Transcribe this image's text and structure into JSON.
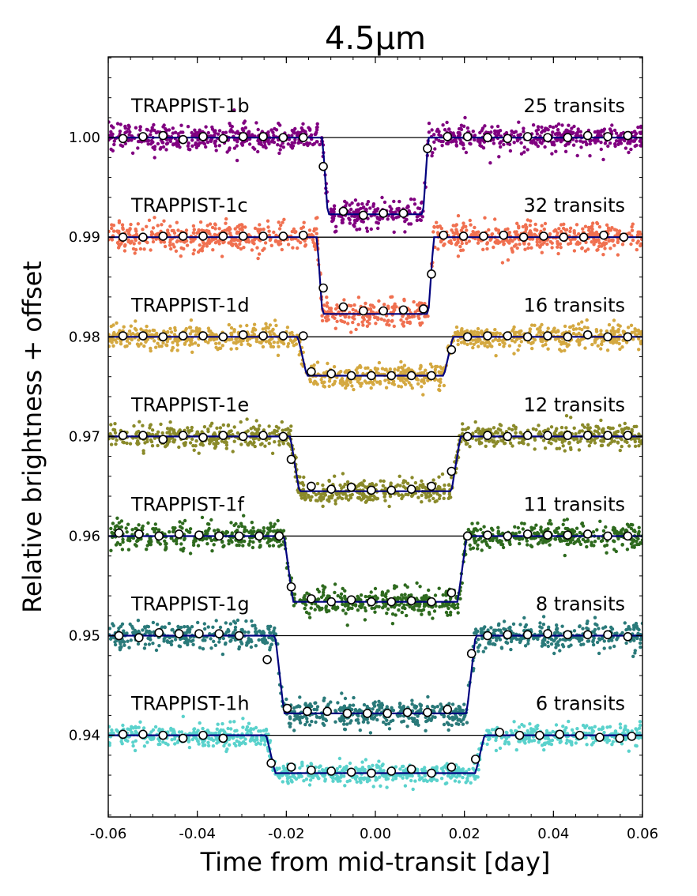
{
  "chart_data": {
    "type": "scatter",
    "title": "4.5μm",
    "xlabel": "Time from mid-transit [day]",
    "ylabel": "Relative brightness + offset",
    "xlim": [
      -0.06,
      0.06
    ],
    "ylim": [
      0.9318,
      1.0081
    ],
    "xticks": [
      -0.06,
      -0.04,
      -0.02,
      0.0,
      0.02,
      0.04,
      0.06
    ],
    "xtick_labels": [
      "-0.06",
      "-0.04",
      "-0.02",
      "0.00",
      "0.02",
      "0.04",
      "0.06"
    ],
    "yticks": [
      1.0,
      0.99,
      0.98,
      0.97,
      0.96,
      0.95,
      0.94
    ],
    "ytick_labels": [
      "1.00",
      "0.99",
      "0.98",
      "0.97",
      "0.96",
      "0.95",
      "0.94"
    ],
    "model_color": "#00007f",
    "baseline_color": "#000000",
    "bin_marker": {
      "fill": "#ffffff",
      "stroke": "#000000"
    },
    "series": [
      {
        "name": "TRAPPIST-1b",
        "transits": "25 transits",
        "color": "#800080",
        "baseline": 1.0,
        "depth": 0.0077,
        "t_half": 0.0119,
        "ingress": 0.0012,
        "scatter": 0.0012,
        "binned": [
          [
            -0.0567,
            0.9999
          ],
          [
            -0.0522,
            1.0001
          ],
          [
            -0.0477,
            1.0002
          ],
          [
            -0.0432,
            0.9998
          ],
          [
            -0.0387,
            1.0001
          ],
          [
            -0.0342,
            0.9999
          ],
          [
            -0.0297,
            1.0001
          ],
          [
            -0.0252,
            1.0001
          ],
          [
            -0.0207,
            1.0
          ],
          [
            -0.0162,
            1.0
          ],
          [
            -0.0117,
            0.9971
          ],
          [
            -0.0072,
            0.9926
          ],
          [
            -0.0027,
            0.9922
          ],
          [
            0.0018,
            0.9924
          ],
          [
            0.0063,
            0.9924
          ],
          [
            0.0117,
            0.9989
          ],
          [
            0.0162,
            1.0001
          ],
          [
            0.0207,
            1.0001
          ],
          [
            0.0252,
            1.0
          ],
          [
            0.0297,
            0.9999
          ],
          [
            0.0342,
            1.0001
          ],
          [
            0.0387,
            1.0
          ],
          [
            0.0432,
            1.0
          ],
          [
            0.0477,
            1.0002
          ],
          [
            0.0522,
            1.0001
          ],
          [
            0.0567,
            1.0002
          ]
        ]
      },
      {
        "name": "TRAPPIST-1c",
        "transits": "32 transits",
        "color": "#f07050",
        "baseline": 0.99,
        "depth": 0.0077,
        "t_half": 0.0131,
        "ingress": 0.0012,
        "scatter": 0.0013,
        "binned": [
          [
            -0.0567,
            0.99
          ],
          [
            -0.0522,
            0.99
          ],
          [
            -0.0477,
            0.9901
          ],
          [
            -0.0432,
            0.9901
          ],
          [
            -0.0387,
            0.9901
          ],
          [
            -0.0342,
            0.9901
          ],
          [
            -0.0297,
            0.9901
          ],
          [
            -0.0252,
            0.9901
          ],
          [
            -0.0207,
            0.9901
          ],
          [
            -0.0162,
            0.9902
          ],
          [
            -0.0117,
            0.9849
          ],
          [
            -0.0072,
            0.983
          ],
          [
            -0.0027,
            0.9826
          ],
          [
            0.0018,
            0.9826
          ],
          [
            0.0063,
            0.9827
          ],
          [
            0.0108,
            0.9828
          ],
          [
            0.0126,
            0.9863
          ],
          [
            0.0153,
            0.9902
          ],
          [
            0.0198,
            0.9901
          ],
          [
            0.0243,
            0.9901
          ],
          [
            0.0288,
            0.9902
          ],
          [
            0.0333,
            0.99
          ],
          [
            0.0378,
            0.9901
          ],
          [
            0.0423,
            0.99
          ],
          [
            0.0468,
            0.99
          ],
          [
            0.0513,
            0.9902
          ],
          [
            0.0558,
            0.99
          ]
        ]
      },
      {
        "name": "TRAPPIST-1d",
        "transits": "16 transits",
        "color": "#d4a840",
        "baseline": 0.98,
        "depth": 0.0039,
        "t_half": 0.0174,
        "ingress": 0.002,
        "scatter": 0.0011,
        "binned": [
          [
            -0.0567,
            0.9801
          ],
          [
            -0.0522,
            0.9801
          ],
          [
            -0.0477,
            0.98
          ],
          [
            -0.0432,
            0.9801
          ],
          [
            -0.0387,
            0.9801
          ],
          [
            -0.0342,
            0.98
          ],
          [
            -0.0297,
            0.9802
          ],
          [
            -0.0252,
            0.9801
          ],
          [
            -0.0207,
            0.9801
          ],
          [
            -0.0162,
            0.9801
          ],
          [
            -0.0144,
            0.9765
          ],
          [
            -0.0099,
            0.9763
          ],
          [
            -0.0054,
            0.9761
          ],
          [
            -0.0009,
            0.9761
          ],
          [
            0.0036,
            0.9761
          ],
          [
            0.0081,
            0.9761
          ],
          [
            0.0126,
            0.9761
          ],
          [
            0.0171,
            0.9787
          ],
          [
            0.0207,
            0.98
          ],
          [
            0.0252,
            0.9801
          ],
          [
            0.0297,
            0.9801
          ],
          [
            0.0342,
            0.98
          ],
          [
            0.0387,
            0.9801
          ],
          [
            0.0432,
            0.98
          ],
          [
            0.0477,
            0.9802
          ],
          [
            0.0522,
            0.98
          ],
          [
            0.0567,
            0.98
          ]
        ]
      },
      {
        "name": "TRAPPIST-1e",
        "transits": "12 transits",
        "color": "#8a8a2a",
        "baseline": 0.97,
        "depth": 0.0055,
        "t_half": 0.0191,
        "ingress": 0.002,
        "scatter": 0.0011,
        "binned": [
          [
            -0.0567,
            0.9701
          ],
          [
            -0.0522,
            0.9701
          ],
          [
            -0.0477,
            0.9697
          ],
          [
            -0.0432,
            0.9701
          ],
          [
            -0.0387,
            0.9699
          ],
          [
            -0.0342,
            0.9701
          ],
          [
            -0.0297,
            0.97
          ],
          [
            -0.0252,
            0.9701
          ],
          [
            -0.0207,
            0.97
          ],
          [
            -0.0189,
            0.9677
          ],
          [
            -0.0144,
            0.965
          ],
          [
            -0.0099,
            0.9647
          ],
          [
            -0.0054,
            0.9649
          ],
          [
            -0.0009,
            0.9646
          ],
          [
            0.0036,
            0.9646
          ],
          [
            0.0081,
            0.9647
          ],
          [
            0.0126,
            0.965
          ],
          [
            0.0171,
            0.9665
          ],
          [
            0.0207,
            0.97
          ],
          [
            0.0252,
            0.9701
          ],
          [
            0.0297,
            0.97
          ],
          [
            0.0342,
            0.9701
          ],
          [
            0.0387,
            0.9701
          ],
          [
            0.0432,
            0.9701
          ],
          [
            0.0477,
            0.9701
          ],
          [
            0.0522,
            0.9701
          ],
          [
            0.0567,
            0.9701
          ]
        ]
      },
      {
        "name": "TRAPPIST-1f",
        "transits": "11 transits",
        "color": "#2e6a1e",
        "baseline": 0.96,
        "depth": 0.0066,
        "t_half": 0.0205,
        "ingress": 0.002,
        "scatter": 0.0012,
        "binned": [
          [
            -0.0576,
            0.9603
          ],
          [
            -0.0531,
            0.9602
          ],
          [
            -0.0486,
            0.96
          ],
          [
            -0.0441,
            0.9602
          ],
          [
            -0.0396,
            0.9601
          ],
          [
            -0.0351,
            0.96
          ],
          [
            -0.0306,
            0.96
          ],
          [
            -0.0261,
            0.96
          ],
          [
            -0.0216,
            0.96
          ],
          [
            -0.0189,
            0.9549
          ],
          [
            -0.0144,
            0.9537
          ],
          [
            -0.0099,
            0.9534
          ],
          [
            -0.0054,
            0.9536
          ],
          [
            -0.0009,
            0.9534
          ],
          [
            0.0036,
            0.9534
          ],
          [
            0.0081,
            0.9535
          ],
          [
            0.0126,
            0.9534
          ],
          [
            0.0171,
            0.9543
          ],
          [
            0.0207,
            0.96
          ],
          [
            0.0252,
            0.9601
          ],
          [
            0.0297,
            0.96
          ],
          [
            0.0342,
            0.9602
          ],
          [
            0.0387,
            0.9601
          ],
          [
            0.0432,
            0.9601
          ],
          [
            0.0477,
            0.9602
          ],
          [
            0.0522,
            0.96
          ],
          [
            0.0567,
            0.96
          ]
        ]
      },
      {
        "name": "TRAPPIST-1g",
        "transits": "8 transits",
        "color": "#2a7a7a",
        "baseline": 0.95,
        "depth": 0.0078,
        "t_half": 0.0225,
        "ingress": 0.002,
        "scatter": 0.0012,
        "binned": [
          [
            -0.0576,
            0.95
          ],
          [
            -0.0531,
            0.9498
          ],
          [
            -0.0486,
            0.9503
          ],
          [
            -0.0441,
            0.9502
          ],
          [
            -0.0396,
            0.9502
          ],
          [
            -0.0351,
            0.9502
          ],
          [
            -0.0306,
            0.95
          ],
          [
            -0.0243,
            0.9476
          ],
          [
            -0.0198,
            0.9427
          ],
          [
            -0.0153,
            0.9424
          ],
          [
            -0.0108,
            0.9424
          ],
          [
            -0.0063,
            0.9422
          ],
          [
            -0.0018,
            0.9422
          ],
          [
            0.0027,
            0.9422
          ],
          [
            0.0072,
            0.9423
          ],
          [
            0.0117,
            0.9423
          ],
          [
            0.0162,
            0.9426
          ],
          [
            0.0216,
            0.9482
          ],
          [
            0.0252,
            0.95
          ],
          [
            0.0297,
            0.9501
          ],
          [
            0.0342,
            0.9501
          ],
          [
            0.0387,
            0.9502
          ],
          [
            0.0432,
            0.9501
          ],
          [
            0.0477,
            0.9501
          ],
          [
            0.0522,
            0.9501
          ],
          [
            0.0567,
            0.9499
          ]
        ]
      },
      {
        "name": "TRAPPIST-1h",
        "transits": "6 transits",
        "color": "#5ad2cc",
        "baseline": 0.94,
        "depth": 0.0038,
        "t_half": 0.0245,
        "ingress": 0.002,
        "scatter": 0.001,
        "binned": [
          [
            -0.0567,
            0.9401
          ],
          [
            -0.0522,
            0.9401
          ],
          [
            -0.0477,
            0.94
          ],
          [
            -0.0432,
            0.9397
          ],
          [
            -0.0387,
            0.94
          ],
          [
            -0.0342,
            0.9397
          ],
          [
            -0.0234,
            0.9372
          ],
          [
            -0.0189,
            0.9368
          ],
          [
            -0.0144,
            0.9365
          ],
          [
            -0.0099,
            0.9364
          ],
          [
            -0.0054,
            0.9363
          ],
          [
            -0.0009,
            0.9362
          ],
          [
            0.0036,
            0.9364
          ],
          [
            0.0081,
            0.9366
          ],
          [
            0.0126,
            0.9362
          ],
          [
            0.0171,
            0.9368
          ],
          [
            0.0225,
            0.9376
          ],
          [
            0.0279,
            0.9403
          ],
          [
            0.0324,
            0.94
          ],
          [
            0.0369,
            0.94
          ],
          [
            0.0414,
            0.9401
          ],
          [
            0.0459,
            0.94
          ],
          [
            0.0504,
            0.9398
          ],
          [
            0.0549,
            0.9397
          ],
          [
            0.0576,
            0.9399
          ]
        ]
      }
    ]
  }
}
